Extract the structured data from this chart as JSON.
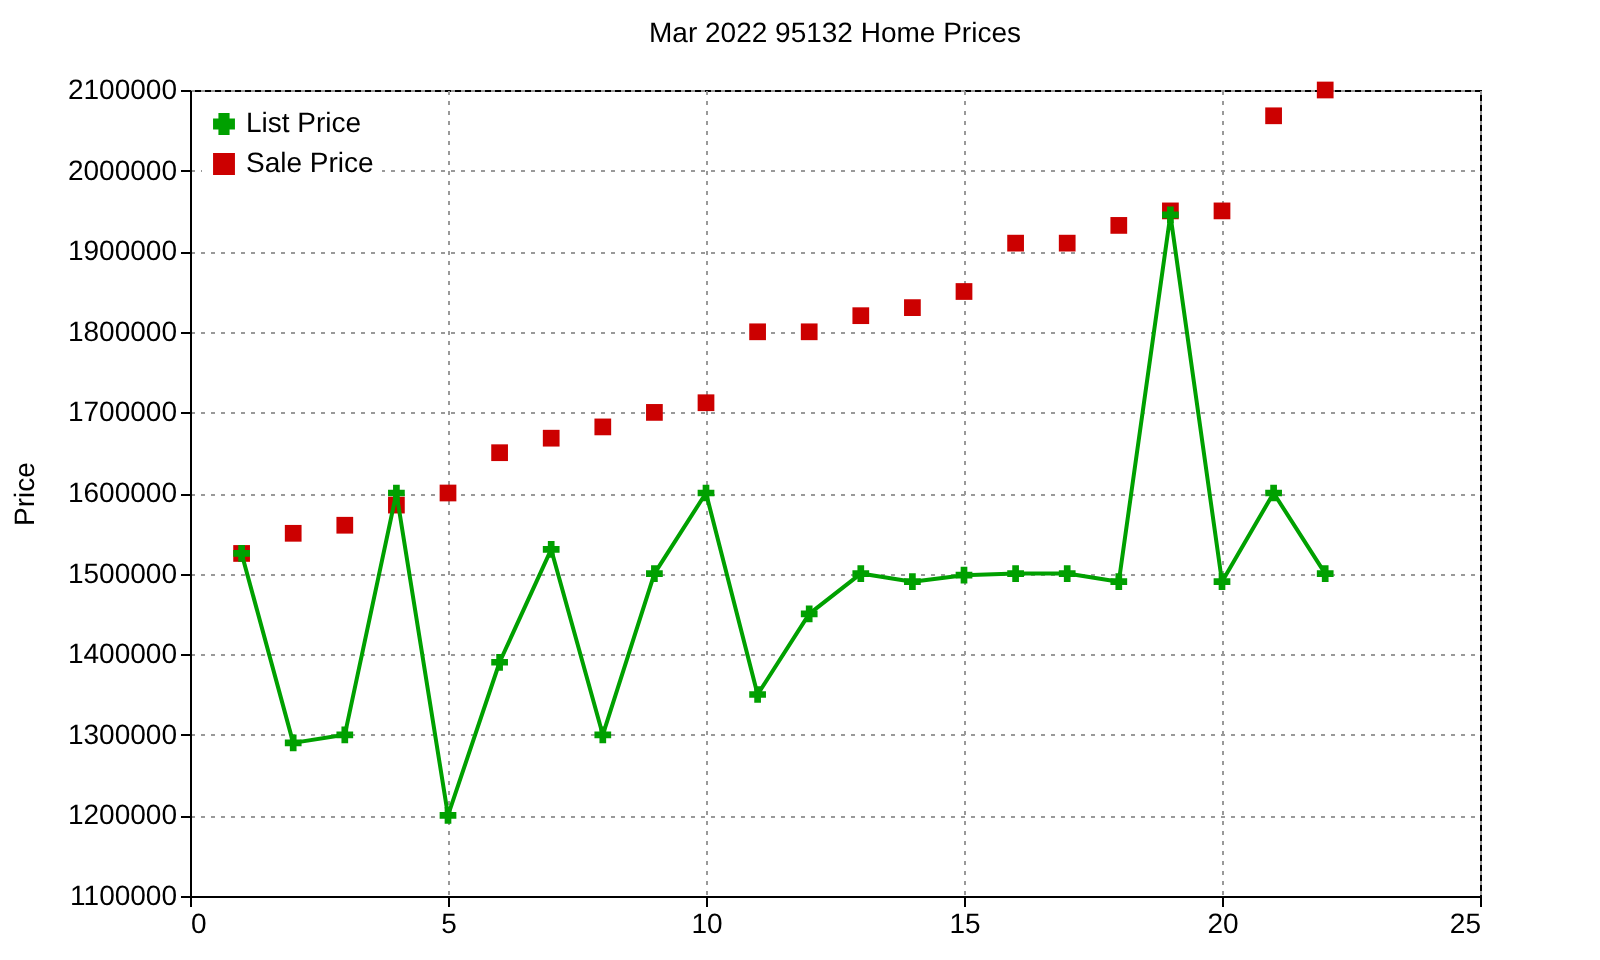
{
  "chart_data": {
    "type": "line",
    "title": "Mar 2022 95132 Home Prices",
    "ylabel": "Price",
    "x": [
      1,
      2,
      3,
      4,
      5,
      6,
      7,
      8,
      9,
      10,
      11,
      12,
      13,
      14,
      15,
      16,
      17,
      18,
      19,
      20,
      21,
      22
    ],
    "series": [
      {
        "name": "List Price",
        "type": "line",
        "marker": "cross",
        "color": "#00a000",
        "values": [
          1525000,
          1290000,
          1300000,
          1600000,
          1200000,
          1390000,
          1530000,
          1300000,
          1500000,
          1600000,
          1350000,
          1450000,
          1500000,
          1490000,
          1498000,
          1500000,
          1500000,
          1490000,
          1945000,
          1490000,
          1600000,
          1500000
        ]
      },
      {
        "name": "Sale Price",
        "type": "scatter",
        "marker": "square",
        "color": "#cc0000",
        "values": [
          1525000,
          1550000,
          1560000,
          1585000,
          1600000,
          1650000,
          1668000,
          1682000,
          1700000,
          1712000,
          1800000,
          1800000,
          1820000,
          1830000,
          1850000,
          1910000,
          1910000,
          1932000,
          1950000,
          1950000,
          2068000,
          2100000
        ]
      }
    ],
    "xlim": [
      0,
      25
    ],
    "xticks": [
      0,
      5,
      10,
      15,
      20,
      25
    ],
    "ylim": [
      1100000,
      2100000
    ],
    "yticks": [
      1100000,
      1200000,
      1300000,
      1400000,
      1500000,
      1600000,
      1700000,
      1800000,
      1900000,
      2000000,
      2100000
    ],
    "grid": true,
    "legend": "top left"
  }
}
